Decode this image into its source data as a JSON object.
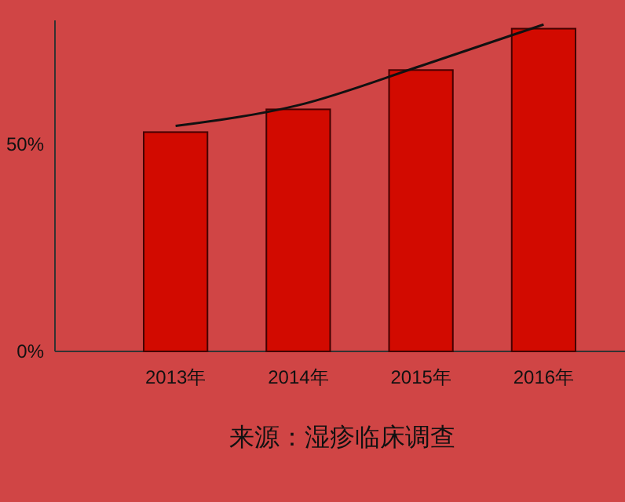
{
  "chart_data": {
    "type": "bar",
    "categories": [
      "2013年",
      "2014年",
      "2015年",
      "2016年"
    ],
    "series": [
      {
        "color": "#d20a00",
        "values": [
          53,
          58.5,
          68,
          78
        ]
      },
      {
        "type": "line",
        "color": "#111111",
        "values": [
          54.5,
          59.5,
          69,
          79
        ]
      }
    ],
    "ylim": [
      0,
      80
    ],
    "yticks": [
      {
        "value": 0,
        "label": "0%"
      },
      {
        "value": 50,
        "label": "50%"
      }
    ],
    "grid": false,
    "marker": "none",
    "line_style": "solid",
    "annotations": [
      "来源：湿疹临床调查"
    ]
  }
}
